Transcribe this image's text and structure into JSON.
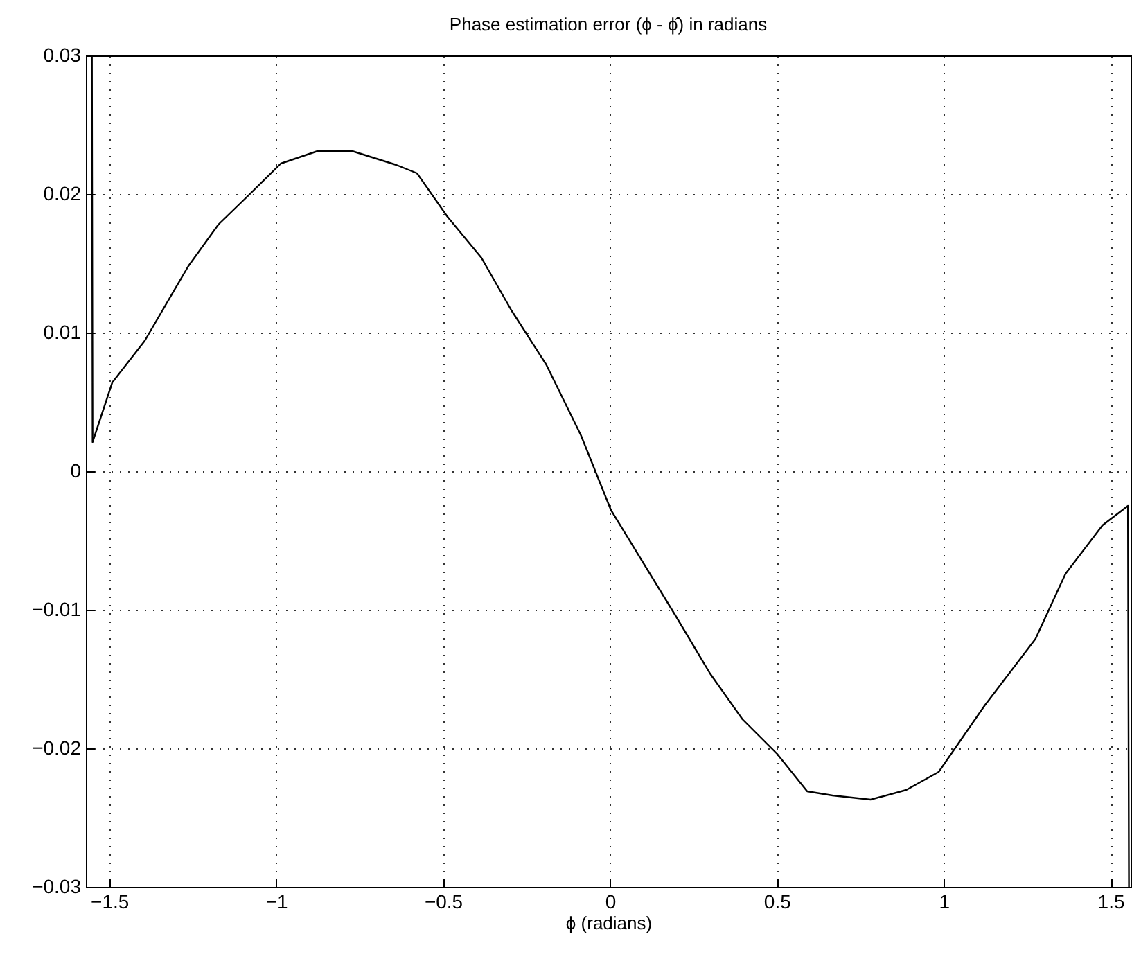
{
  "chart_data": {
    "type": "line",
    "title": "Phase estimation error  (ϕ - ϕ̂) in radians",
    "xlabel": "ϕ (radians)",
    "x": [
      -1.552,
      -1.55,
      -1.491,
      -1.394,
      -1.263,
      -1.173,
      -1.083,
      -0.986,
      -0.876,
      -0.772,
      -0.64,
      -0.578,
      -0.488,
      -0.385,
      -0.295,
      -0.191,
      -0.087,
      0.003,
      0.196,
      0.3,
      0.397,
      0.501,
      0.591,
      0.667,
      0.781,
      0.888,
      0.985,
      1.123,
      1.275,
      1.365,
      1.476,
      1.552,
      1.555
    ],
    "series": [
      {
        "color": "#000000",
        "values": [
          0.03,
          0.0021,
          0.0064,
          0.0094,
          0.0148,
          0.0178,
          0.0199,
          0.0222,
          0.0231,
          0.0231,
          0.0221,
          0.0215,
          0.0184,
          0.0154,
          0.0116,
          0.0077,
          0.0026,
          -0.0028,
          -0.0104,
          -0.0146,
          -0.0179,
          -0.0204,
          -0.0231,
          -0.0234,
          -0.0237,
          -0.023,
          -0.0217,
          -0.0169,
          -0.0121,
          -0.0074,
          -0.0039,
          -0.0025,
          -0.03
        ]
      }
    ],
    "xlim": [
      -1.57,
      1.56
    ],
    "xticks": [
      -1.5,
      -1,
      -0.5,
      0,
      0.5,
      1,
      1.5
    ],
    "ylim": [
      -0.03,
      0.03
    ],
    "yticks": [
      -0.03,
      -0.02,
      -0.01,
      0,
      0.01,
      0.02,
      0.03
    ],
    "grid": true,
    "marker": "none",
    "line_style": "solid"
  }
}
